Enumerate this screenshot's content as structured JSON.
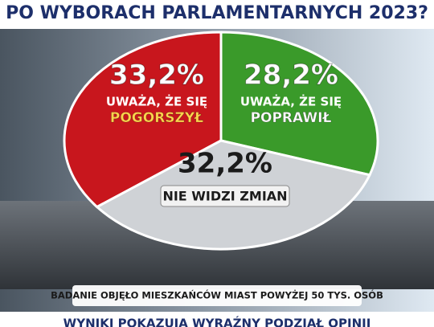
{
  "chart_data": {
    "type": "pie",
    "title": "PO WYBORACH PARLAMENTARNYCH 2023?",
    "categories": [
      "POGORSZYŁ",
      "POPRAWIŁ",
      "NIE WIDZI ZMIAN"
    ],
    "values": [
      33.2,
      28.2,
      32.2
    ],
    "value_labels": [
      "33,2%",
      "28,2%",
      "32,2%"
    ],
    "colors": [
      "#c8161d",
      "#3a9a2a",
      "#cfd2d6"
    ],
    "annotations": [
      "UWAŻA, ŻE SIĘ",
      "UWAŻA, ŻE SIĘ"
    ],
    "footnote": "BADANIE OBJĘŁO MIESZKAŃCÓW MIAST POWYŻEJ 50 TYS. OSÓB",
    "bottom_text": "WYNIKI POKAZUJĄ WYRAŹNY PODZIAŁ OPINII"
  }
}
